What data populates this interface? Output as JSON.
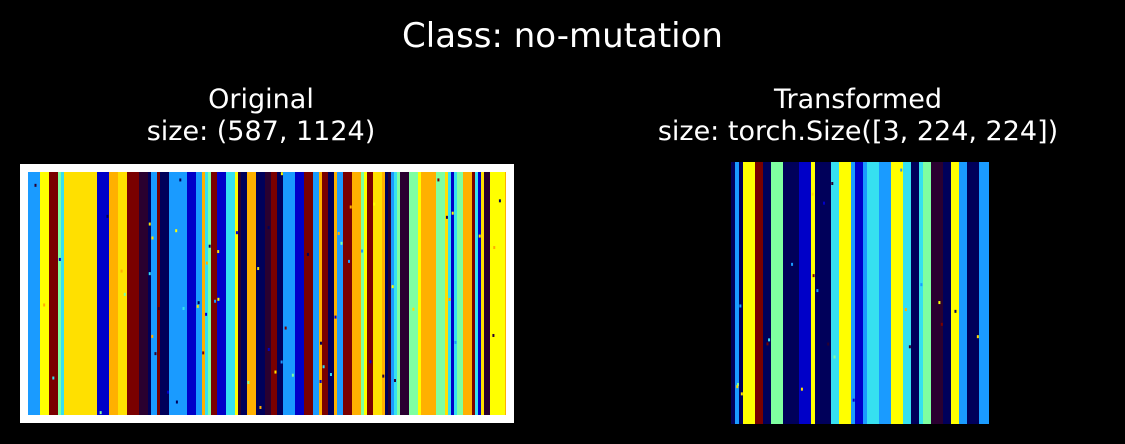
{
  "figure": {
    "suptitle": "Class: no-mutation",
    "panels": [
      {
        "title_line1": "Original",
        "title_line2": "size: (587, 1124)"
      },
      {
        "title_line1": "Transformed",
        "title_line2": "size: torch.Size([3, 224, 224])"
      }
    ],
    "palette": [
      "#00005a",
      "#0000c8",
      "#1a9bff",
      "#36e0f0",
      "#7fffa0",
      "#ffe000",
      "#ffb000",
      "#7a0000",
      "#2a0030",
      "#ffff00"
    ]
  }
}
